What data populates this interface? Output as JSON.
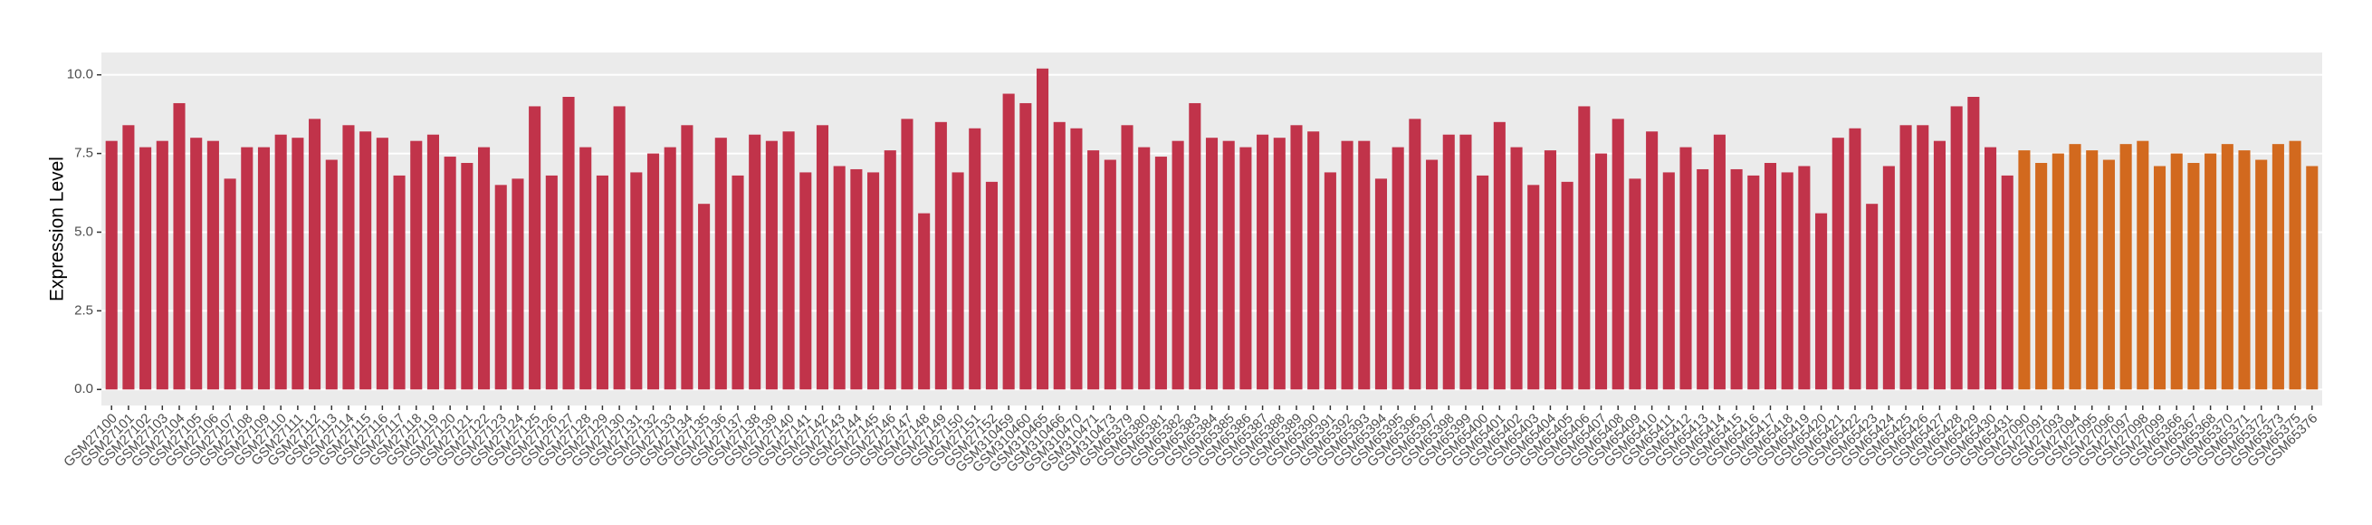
{
  "chart_data": {
    "type": "bar",
    "y_label": "Expression Level",
    "categories": [
      "GSM27100",
      "GSM27101",
      "GSM27102",
      "GSM27103",
      "GSM27104",
      "GSM27105",
      "GSM27106",
      "GSM27107",
      "GSM27108",
      "GSM27109",
      "GSM27110",
      "GSM27111",
      "GSM27112",
      "GSM27113",
      "GSM27114",
      "GSM27115",
      "GSM27116",
      "GSM27117",
      "GSM27118",
      "GSM27119",
      "GSM27120",
      "GSM27121",
      "GSM27122",
      "GSM27123",
      "GSM27124",
      "GSM27125",
      "GSM27126",
      "GSM27127",
      "GSM27128",
      "GSM27129",
      "GSM27130",
      "GSM27131",
      "GSM27132",
      "GSM27133",
      "GSM27134",
      "GSM27135",
      "GSM27136",
      "GSM27137",
      "GSM27138",
      "GSM27139",
      "GSM27140",
      "GSM27141",
      "GSM27142",
      "GSM27143",
      "GSM27144",
      "GSM27145",
      "GSM27146",
      "GSM27147",
      "GSM27148",
      "GSM27149",
      "GSM27150",
      "GSM27151",
      "GSM27152",
      "GSM310459",
      "GSM310460",
      "GSM310465",
      "GSM310466",
      "GSM310470",
      "GSM310471",
      "GSM310473",
      "GSM65379",
      "GSM65380",
      "GSM65381",
      "GSM65382",
      "GSM65383",
      "GSM65384",
      "GSM65385",
      "GSM65386",
      "GSM65387",
      "GSM65388",
      "GSM65389",
      "GSM65390",
      "GSM65391",
      "GSM65392",
      "GSM65393",
      "GSM65394",
      "GSM65395",
      "GSM65396",
      "GSM65397",
      "GSM65398",
      "GSM65399",
      "GSM65400",
      "GSM65401",
      "GSM65402",
      "GSM65403",
      "GSM65404",
      "GSM65405",
      "GSM65406",
      "GSM65407",
      "GSM65408",
      "GSM65409",
      "GSM65410",
      "GSM65411",
      "GSM65412",
      "GSM65413",
      "GSM65414",
      "GSM65415",
      "GSM65416",
      "GSM65417",
      "GSM65418",
      "GSM65419",
      "GSM65420",
      "GSM65421",
      "GSM65422",
      "GSM65423",
      "GSM65424",
      "GSM65425",
      "GSM65426",
      "GSM65427",
      "GSM65428",
      "GSM65429",
      "GSM65430",
      "GSM65431",
      "GSM27090",
      "GSM27091",
      "GSM27093",
      "GSM27094",
      "GSM27095",
      "GSM27096",
      "GSM27097",
      "GSM27098",
      "GSM27099",
      "GSM65366",
      "GSM65367",
      "GSM65368",
      "GSM65370",
      "GSM65371",
      "GSM65372",
      "GSM65373",
      "GSM65375",
      "GSM65376"
    ],
    "values": [
      7.9,
      8.4,
      7.7,
      7.9,
      9.1,
      8.0,
      7.9,
      6.7,
      7.7,
      7.7,
      8.1,
      8.0,
      8.6,
      7.3,
      8.4,
      8.2,
      8.0,
      6.8,
      7.9,
      8.1,
      7.4,
      7.2,
      7.7,
      6.5,
      6.7,
      9.0,
      6.8,
      9.3,
      7.7,
      6.8,
      9.0,
      6.9,
      7.5,
      7.7,
      8.4,
      5.9,
      8.0,
      6.8,
      8.1,
      7.9,
      8.2,
      6.9,
      8.4,
      7.1,
      7.0,
      6.9,
      7.6,
      8.6,
      5.6,
      8.5,
      6.9,
      8.3,
      6.6,
      9.4,
      9.1,
      10.2,
      8.5,
      8.3,
      7.6,
      7.3,
      8.4,
      7.7,
      7.4,
      7.9,
      9.1,
      8.0,
      7.9,
      7.7,
      8.1,
      8.0,
      8.4,
      8.2,
      6.9,
      7.9,
      7.9,
      6.7,
      7.7,
      8.6,
      7.3,
      8.1,
      8.1,
      6.8,
      8.5,
      7.7,
      6.5,
      7.6,
      6.6,
      9.0,
      7.5,
      8.6,
      6.7,
      8.2,
      6.9,
      7.7,
      7.0,
      8.1,
      7.0,
      6.8,
      7.2,
      6.9,
      7.1,
      5.6,
      8.0,
      8.3,
      5.9,
      7.1,
      8.4,
      8.4,
      7.9,
      9.0,
      9.3,
      7.7,
      6.8,
      7.6,
      7.2,
      7.5,
      7.8,
      7.6,
      7.3,
      7.8,
      7.9,
      7.1,
      7.5,
      7.2,
      7.5,
      7.8,
      7.6,
      7.3,
      7.8,
      7.9,
      7.1
    ],
    "colors": [
      "#c1334a",
      "#c1334a",
      "#c1334a",
      "#c1334a",
      "#c1334a",
      "#c1334a",
      "#c1334a",
      "#c1334a",
      "#c1334a",
      "#c1334a",
      "#c1334a",
      "#c1334a",
      "#c1334a",
      "#c1334a",
      "#c1334a",
      "#c1334a",
      "#c1334a",
      "#c1334a",
      "#c1334a",
      "#c1334a",
      "#c1334a",
      "#c1334a",
      "#c1334a",
      "#c1334a",
      "#c1334a",
      "#c1334a",
      "#c1334a",
      "#c1334a",
      "#c1334a",
      "#c1334a",
      "#c1334a",
      "#c1334a",
      "#c1334a",
      "#c1334a",
      "#c1334a",
      "#c1334a",
      "#c1334a",
      "#c1334a",
      "#c1334a",
      "#c1334a",
      "#c1334a",
      "#c1334a",
      "#c1334a",
      "#c1334a",
      "#c1334a",
      "#c1334a",
      "#c1334a",
      "#c1334a",
      "#c1334a",
      "#c1334a",
      "#c1334a",
      "#c1334a",
      "#c1334a",
      "#c1334a",
      "#c1334a",
      "#c1334a",
      "#c1334a",
      "#c1334a",
      "#c1334a",
      "#c1334a",
      "#c1334a",
      "#c1334a",
      "#c1334a",
      "#c1334a",
      "#c1334a",
      "#c1334a",
      "#c1334a",
      "#c1334a",
      "#c1334a",
      "#c1334a",
      "#c1334a",
      "#c1334a",
      "#c1334a",
      "#c1334a",
      "#c1334a",
      "#c1334a",
      "#c1334a",
      "#c1334a",
      "#c1334a",
      "#c1334a",
      "#c1334a",
      "#c1334a",
      "#c1334a",
      "#c1334a",
      "#c1334a",
      "#c1334a",
      "#c1334a",
      "#c1334a",
      "#c1334a",
      "#c1334a",
      "#c1334a",
      "#c1334a",
      "#c1334a",
      "#c1334a",
      "#c1334a",
      "#c1334a",
      "#c1334a",
      "#c1334a",
      "#c1334a",
      "#c1334a",
      "#c1334a",
      "#c1334a",
      "#c1334a",
      "#c1334a",
      "#c1334a",
      "#c1334a",
      "#c1334a",
      "#c1334a",
      "#c1334a",
      "#c1334a",
      "#c1334a",
      "#c1334a",
      "#c1334a",
      "#d2691e",
      "#d2691e",
      "#d2691e",
      "#d2691e",
      "#d2691e",
      "#d2691e",
      "#d2691e",
      "#d2691e",
      "#d2691e",
      "#d2691e",
      "#d2691e",
      "#d2691e",
      "#d2691e",
      "#d2691e",
      "#d2691e",
      "#d2691e",
      "#d2691e",
      "#d2691e"
    ],
    "ylim": [
      -0.51,
      10.71
    ],
    "yticks": [
      {
        "value": 0,
        "label": "0.0"
      },
      2.5,
      {
        "value": 5,
        "label": "5.0"
      },
      7.5,
      {
        "value": 10,
        "label": "10.0"
      }
    ],
    "grid": true
  }
}
